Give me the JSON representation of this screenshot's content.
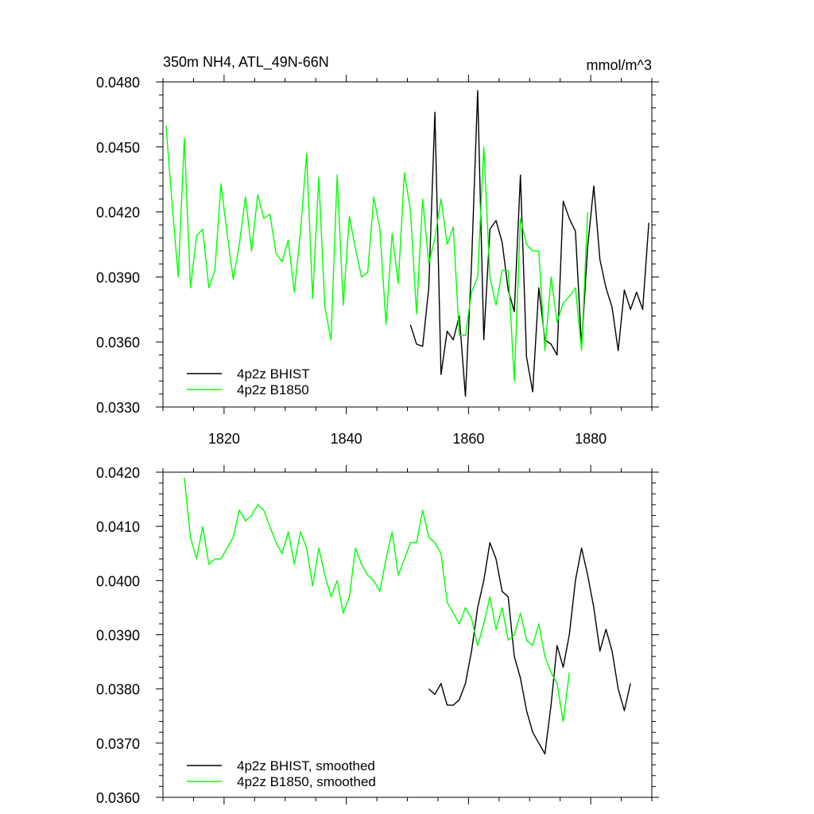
{
  "chart_data": [
    {
      "type": "line",
      "title": "350m NH4, ATL_49N-66N",
      "units": "mmol/m^3",
      "xlim": [
        1810,
        1890
      ],
      "ylim": [
        0.033,
        0.048
      ],
      "xticks": [
        1820,
        1840,
        1860,
        1880
      ],
      "xtick_labels": [
        "1820",
        "1840",
        "1860",
        "1880"
      ],
      "yticks": [
        0.033,
        0.036,
        0.039,
        0.042,
        0.045,
        0.048
      ],
      "ytick_labels": [
        "0.0330",
        "0.0360",
        "0.0390",
        "0.0420",
        "0.0450",
        "0.0480"
      ],
      "legend_position": "bottom-left",
      "series": [
        {
          "name": "4p2z BHIST",
          "color": "#000000",
          "x": [
            1850.5,
            1851.5,
            1852.5,
            1853.5,
            1854.5,
            1855.5,
            1856.5,
            1857.5,
            1858.5,
            1859.5,
            1860.5,
            1861.5,
            1862.5,
            1863.5,
            1864.5,
            1865.5,
            1866.5,
            1867.5,
            1868.5,
            1869.5,
            1870.5,
            1871.5,
            1872.5,
            1873.5,
            1874.5,
            1875.5,
            1876.5,
            1877.5,
            1878.5,
            1879.5,
            1880.5,
            1881.5,
            1882.5,
            1883.5,
            1884.5,
            1885.5,
            1886.5,
            1887.5,
            1888.5,
            1889.5
          ],
          "y": [
            0.0368,
            0.0359,
            0.0358,
            0.0385,
            0.0466,
            0.0345,
            0.0365,
            0.0361,
            0.0372,
            0.0335,
            0.0396,
            0.0476,
            0.0361,
            0.0412,
            0.0416,
            0.0406,
            0.0384,
            0.0374,
            0.0437,
            0.0353,
            0.0337,
            0.0385,
            0.0361,
            0.0359,
            0.0354,
            0.0425,
            0.0417,
            0.0411,
            0.0358,
            0.0404,
            0.0432,
            0.0398,
            0.0385,
            0.0376,
            0.0356,
            0.0384,
            0.0375,
            0.0383,
            0.0375,
            0.0415
          ]
        },
        {
          "name": "4p2z B1850",
          "color": "#00ff00",
          "x": [
            1810.5,
            1811.5,
            1812.5,
            1813.5,
            1814.5,
            1815.5,
            1816.5,
            1817.5,
            1818.5,
            1819.5,
            1820.5,
            1821.5,
            1822.5,
            1823.5,
            1824.5,
            1825.5,
            1826.5,
            1827.5,
            1828.5,
            1829.5,
            1830.5,
            1831.5,
            1832.5,
            1833.5,
            1834.5,
            1835.5,
            1836.5,
            1837.5,
            1838.5,
            1839.5,
            1840.5,
            1841.5,
            1842.5,
            1843.5,
            1844.5,
            1845.5,
            1846.5,
            1847.5,
            1848.5,
            1849.5,
            1850.5,
            1851.5,
            1852.5,
            1853.5,
            1854.5,
            1855.5,
            1856.5,
            1857.5,
            1858.5,
            1859.5,
            1860.5,
            1861.5,
            1862.5,
            1863.5,
            1864.5,
            1865.5,
            1866.5,
            1867.5,
            1868.5,
            1869.5,
            1870.5,
            1871.5,
            1872.5,
            1873.5,
            1874.5,
            1875.5,
            1876.5,
            1877.5,
            1878.5,
            1879.5
          ],
          "y": [
            0.046,
            0.0424,
            0.039,
            0.0454,
            0.0385,
            0.0409,
            0.0412,
            0.0385,
            0.0393,
            0.0433,
            0.041,
            0.0389,
            0.0405,
            0.0427,
            0.0402,
            0.0428,
            0.0417,
            0.0419,
            0.0401,
            0.0397,
            0.0407,
            0.0383,
            0.0411,
            0.0447,
            0.038,
            0.0436,
            0.0376,
            0.0361,
            0.0437,
            0.0377,
            0.0418,
            0.0403,
            0.039,
            0.0392,
            0.0427,
            0.0412,
            0.0368,
            0.041,
            0.0387,
            0.0438,
            0.0421,
            0.0373,
            0.0426,
            0.0396,
            0.0408,
            0.0426,
            0.0405,
            0.0413,
            0.0363,
            0.0363,
            0.0383,
            0.039,
            0.045,
            0.039,
            0.0377,
            0.0393,
            0.0393,
            0.0342,
            0.0417,
            0.0405,
            0.0402,
            0.0402,
            0.0356,
            0.039,
            0.0369,
            0.0378,
            0.0381,
            0.0385,
            0.0356,
            0.042
          ]
        }
      ]
    },
    {
      "type": "line",
      "xlim": [
        1810,
        1890
      ],
      "ylim": [
        0.036,
        0.042
      ],
      "yticks": [
        0.036,
        0.037,
        0.038,
        0.039,
        0.04,
        0.041,
        0.042
      ],
      "ytick_labels": [
        "0.0360",
        "0.0370",
        "0.0380",
        "0.0390",
        "0.0400",
        "0.0410",
        "0.0420"
      ],
      "legend_position": "bottom-left",
      "series": [
        {
          "name": "4p2z BHIST, smoothed",
          "color": "#000000",
          "x": [
            1853.5,
            1854.5,
            1855.5,
            1856.5,
            1857.5,
            1858.5,
            1859.5,
            1860.5,
            1861.5,
            1862.5,
            1863.5,
            1864.5,
            1865.5,
            1866.5,
            1867.5,
            1868.5,
            1869.5,
            1870.5,
            1871.5,
            1872.5,
            1873.5,
            1874.5,
            1875.5,
            1876.5,
            1877.5,
            1878.5,
            1879.5,
            1880.5,
            1881.5,
            1882.5,
            1883.5,
            1884.5,
            1885.5,
            1886.5
          ],
          "y": [
            0.038,
            0.0379,
            0.0381,
            0.0377,
            0.0377,
            0.0378,
            0.0381,
            0.0387,
            0.0395,
            0.04,
            0.0407,
            0.0404,
            0.0398,
            0.0397,
            0.0386,
            0.0382,
            0.0376,
            0.0372,
            0.037,
            0.0368,
            0.0377,
            0.0388,
            0.0384,
            0.039,
            0.04,
            0.0406,
            0.0401,
            0.0395,
            0.0387,
            0.0391,
            0.0387,
            0.038,
            0.0376,
            0.0381
          ]
        },
        {
          "name": "4p2z B1850, smoothed",
          "color": "#00ff00",
          "x": [
            1813.5,
            1814.5,
            1815.5,
            1816.5,
            1817.5,
            1818.5,
            1819.5,
            1820.5,
            1821.5,
            1822.5,
            1823.5,
            1824.5,
            1825.5,
            1826.5,
            1827.5,
            1828.5,
            1829.5,
            1830.5,
            1831.5,
            1832.5,
            1833.5,
            1834.5,
            1835.5,
            1836.5,
            1837.5,
            1838.5,
            1839.5,
            1840.5,
            1841.5,
            1842.5,
            1843.5,
            1844.5,
            1845.5,
            1846.5,
            1847.5,
            1848.5,
            1849.5,
            1850.5,
            1851.5,
            1852.5,
            1853.5,
            1854.5,
            1855.5,
            1856.5,
            1857.5,
            1858.5,
            1859.5,
            1860.5,
            1861.5,
            1862.5,
            1863.5,
            1864.5,
            1865.5,
            1866.5,
            1867.5,
            1868.5,
            1869.5,
            1870.5,
            1871.5,
            1872.5,
            1873.5,
            1874.5,
            1875.5,
            1876.5
          ],
          "y": [
            0.0419,
            0.0408,
            0.0404,
            0.041,
            0.0403,
            0.0404,
            0.0404,
            0.0406,
            0.0408,
            0.0413,
            0.0411,
            0.0412,
            0.0414,
            0.0413,
            0.041,
            0.0407,
            0.0405,
            0.0409,
            0.0403,
            0.0409,
            0.0406,
            0.0399,
            0.0406,
            0.0401,
            0.0397,
            0.04,
            0.0394,
            0.0397,
            0.0406,
            0.0403,
            0.0401,
            0.04,
            0.0398,
            0.0404,
            0.0409,
            0.0401,
            0.0404,
            0.0407,
            0.0407,
            0.0413,
            0.0408,
            0.0407,
            0.0405,
            0.0396,
            0.0394,
            0.0392,
            0.0395,
            0.0393,
            0.0388,
            0.0392,
            0.0397,
            0.0391,
            0.0395,
            0.0389,
            0.039,
            0.0394,
            0.0389,
            0.0388,
            0.0392,
            0.0386,
            0.0383,
            0.0381,
            0.0374,
            0.0383
          ]
        }
      ]
    }
  ]
}
